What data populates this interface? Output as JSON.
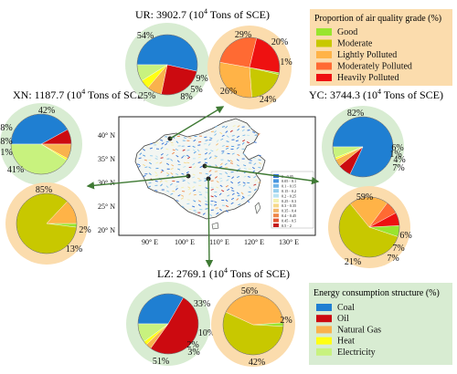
{
  "colors": {
    "energy_bg": "#d8ecd2",
    "aq_bg": "#fbdcad",
    "coal": "#1f7fd2",
    "oil": "#cc0a10",
    "natural_gas": "#f9b24d",
    "heat": "#ffff12",
    "electricity": "#c8f27e",
    "good": "#99e52e",
    "moderate": "#c8c800",
    "lightly_polluted": "#ffb347",
    "moderately_polluted": "#ff6a33",
    "heavily_polluted": "#ee1111",
    "arrow": "#3f7a34"
  },
  "legend_aq": {
    "title": "Proportion of air quality grade (%)",
    "items": [
      {
        "label": "Good",
        "color": "#99e52e"
      },
      {
        "label": "Moderate",
        "color": "#c8c800"
      },
      {
        "label": "Lightly Polluted",
        "color": "#ffb347"
      },
      {
        "label": "Moderately Polluted",
        "color": "#ff6a33"
      },
      {
        "label": "Heavily Polluted",
        "color": "#ee1111"
      }
    ]
  },
  "legend_energy": {
    "title": "Energy consumption structure (%)",
    "items": [
      {
        "label": "Coal",
        "color": "#1f7fd2"
      },
      {
        "label": "Oil",
        "color": "#cc0a10"
      },
      {
        "label": "Natural Gas",
        "color": "#f9b24d"
      },
      {
        "label": "Heat",
        "color": "#ffff12"
      },
      {
        "label": "Electricity",
        "color": "#c8f27e"
      }
    ]
  },
  "map": {
    "lat_labels": [
      "40° N",
      "35° N",
      "30° N",
      "25° N",
      "20° N"
    ],
    "lon_labels": [
      "90° E",
      "100° E",
      "110° E",
      "120° E",
      "130° E"
    ],
    "colorbar": [
      "0 - 0.05",
      "0.05 - 0.1",
      "0.1 - 0.15",
      "0.15 - 0.2",
      "0.2 - 0.25",
      "0.25 - 0.3",
      "0.3 - 0.35",
      "0.35 - 0.4",
      "0.4 - 0.45",
      "0.45 - 0.5",
      "0.5 - 2"
    ],
    "colorbar_colors": [
      "#2e6fd8",
      "#4a97e0",
      "#72b5e8",
      "#96cfee",
      "#b9e3f2",
      "#f4f1b0",
      "#f6d98a",
      "#f4b569",
      "#ee8648",
      "#e25430",
      "#c41c1c"
    ]
  },
  "chart_data": [
    {
      "type": "pie",
      "city": "UR",
      "label_prefix": "UR: 3902.7 (10",
      "label_sup": "4",
      "label_suffix": " Tons of SCE)",
      "chart": "energy",
      "slices": [
        {
          "name": "Coal",
          "value": 54
        },
        {
          "name": "Oil",
          "value": 25
        },
        {
          "name": "Natural Gas",
          "value": 8
        },
        {
          "name": "Heat",
          "value": 5
        },
        {
          "name": "Electricity",
          "value": 9
        }
      ],
      "labels": [
        "54%",
        "25%",
        "8%",
        "5%",
        "9%"
      ]
    },
    {
      "type": "pie",
      "city": "UR",
      "chart": "air_quality",
      "slices": [
        {
          "name": "Good",
          "value": 1
        },
        {
          "name": "Moderate",
          "value": 20
        },
        {
          "name": "Lightly Polluted",
          "value": 29
        },
        {
          "name": "Moderately Polluted",
          "value": 26
        },
        {
          "name": "Heavily Polluted",
          "value": 24
        }
      ],
      "labels": [
        "1%",
        "20%",
        "29%",
        "26%",
        "24%"
      ]
    },
    {
      "type": "pie",
      "city": "XN",
      "label_prefix": "XN: 1187.7 (10",
      "label_sup": "4",
      "label_suffix": " Tons of SCE)",
      "chart": "energy",
      "slices": [
        {
          "name": "Coal",
          "value": 42
        },
        {
          "name": "Oil",
          "value": 8
        },
        {
          "name": "Natural Gas",
          "value": 8
        },
        {
          "name": "Heat",
          "value": 1
        },
        {
          "name": "Electricity",
          "value": 41
        }
      ],
      "labels": [
        "42%",
        "8%",
        "8%",
        "1%",
        "41%"
      ]
    },
    {
      "type": "pie",
      "city": "XN",
      "chart": "air_quality",
      "slices": [
        {
          "name": "Good",
          "value": 2
        },
        {
          "name": "Moderate",
          "value": 85
        },
        {
          "name": "Lightly Polluted",
          "value": 13
        }
      ],
      "labels": [
        "2%",
        "85%",
        "13%"
      ]
    },
    {
      "type": "pie",
      "city": "YC",
      "label_prefix": "YC: 3744.3 (10",
      "label_sup": "4",
      "label_suffix": "  Tons of SCE)",
      "chart": "energy",
      "slices": [
        {
          "name": "Coal",
          "value": 82
        },
        {
          "name": "Oil",
          "value": 7
        },
        {
          "name": "Natural Gas",
          "value": 4
        },
        {
          "name": "Heat",
          "value": 1
        },
        {
          "name": "Electricity",
          "value": 6
        }
      ],
      "labels": [
        "82%",
        "7%",
        "4%",
        "1%",
        "6%"
      ]
    },
    {
      "type": "pie",
      "city": "YC",
      "chart": "air_quality",
      "slices": [
        {
          "name": "Good",
          "value": 6
        },
        {
          "name": "Moderate",
          "value": 59
        },
        {
          "name": "Lightly Polluted",
          "value": 21
        },
        {
          "name": "Moderately Polluted",
          "value": 7
        },
        {
          "name": "Heavily Polluted",
          "value": 7
        }
      ],
      "labels": [
        "6%",
        "59%",
        "21%",
        "7%",
        "7%"
      ]
    },
    {
      "type": "pie",
      "city": "LZ",
      "label_prefix": "LZ: 2769.1 (10",
      "label_sup": "4",
      "label_suffix": " Tons of SCE)",
      "chart": "energy",
      "slices": [
        {
          "name": "Coal",
          "value": 33
        },
        {
          "name": "Oil",
          "value": 51
        },
        {
          "name": "Natural Gas",
          "value": 3
        },
        {
          "name": "Heat",
          "value": 2
        },
        {
          "name": "Electricity",
          "value": 10
        }
      ],
      "labels": [
        "33%",
        "51%",
        "3%",
        "2%",
        "10%"
      ]
    },
    {
      "type": "pie",
      "city": "LZ",
      "chart": "air_quality",
      "slices": [
        {
          "name": "Good",
          "value": 2
        },
        {
          "name": "Moderate",
          "value": 56
        },
        {
          "name": "Lightly Polluted",
          "value": 42
        }
      ],
      "labels": [
        "2%",
        "56%",
        "42%"
      ]
    }
  ]
}
